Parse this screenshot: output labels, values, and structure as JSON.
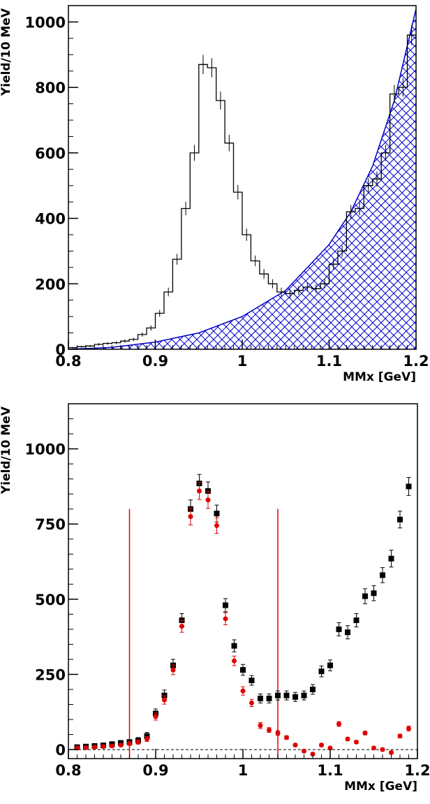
{
  "colors": {
    "axis": "#000000",
    "background_fill": "#0000cc",
    "cut_lines": "#e00000",
    "after_subtraction": "#e00000",
    "before_subtraction": "#000000"
  },
  "chart_data": [
    {
      "type": "line",
      "subtype": "histogram-with-fitted-background",
      "ylabel": "Yield/10 MeV",
      "xlabel": "MMx [GeV]",
      "xlim": [
        0.8,
        1.2
      ],
      "ylim": [
        0,
        1050
      ],
      "x_ticks": [
        "0.8",
        "0.9",
        "1",
        "1.1",
        "1.2"
      ],
      "y_ticks": [
        "0",
        "200",
        "400",
        "600",
        "800",
        "1000"
      ],
      "grid": false,
      "legend": "none",
      "bin_width": 0.01,
      "bin_edges_start": 0.8,
      "histogram_values": [
        5,
        8,
        10,
        15,
        18,
        20,
        25,
        30,
        45,
        65,
        110,
        175,
        275,
        430,
        600,
        870,
        860,
        760,
        630,
        480,
        350,
        270,
        230,
        200,
        175,
        170,
        180,
        190,
        185,
        200,
        260,
        300,
        420,
        430,
        500,
        520,
        600,
        780,
        800,
        960
      ],
      "background_fit": [
        [
          0.8,
          0
        ],
        [
          0.85,
          6
        ],
        [
          0.9,
          22
        ],
        [
          0.95,
          50
        ],
        [
          1.0,
          100
        ],
        [
          1.05,
          180
        ],
        [
          1.1,
          320
        ],
        [
          1.125,
          420
        ],
        [
          1.15,
          560
        ],
        [
          1.175,
          760
        ],
        [
          1.2,
          1040
        ]
      ]
    },
    {
      "type": "scatter",
      "ylabel": "Yield/10 MeV",
      "xlabel": "MMx [GeV]",
      "xlim": [
        0.8,
        1.2
      ],
      "ylim": [
        -30,
        1150
      ],
      "x_ticks": [
        "0.8",
        "0.9",
        "1",
        "1.1",
        "1.2"
      ],
      "y_ticks": [
        "0",
        "250",
        "500",
        "750",
        "1000"
      ],
      "grid": false,
      "legend": "none",
      "x": [
        0.81,
        0.82,
        0.83,
        0.84,
        0.85,
        0.86,
        0.87,
        0.88,
        0.89,
        0.9,
        0.91,
        0.92,
        0.93,
        0.94,
        0.95,
        0.96,
        0.97,
        0.98,
        0.99,
        1.0,
        1.01,
        1.02,
        1.03,
        1.04,
        1.05,
        1.06,
        1.07,
        1.08,
        1.09,
        1.1,
        1.11,
        1.12,
        1.13,
        1.14,
        1.15,
        1.16,
        1.17,
        1.18,
        1.19
      ],
      "series": [
        {
          "marker": "square",
          "values": [
            8,
            10,
            12,
            14,
            18,
            22,
            25,
            30,
            45,
            120,
            180,
            280,
            430,
            800,
            885,
            860,
            785,
            480,
            345,
            265,
            230,
            170,
            170,
            180,
            180,
            175,
            180,
            200,
            260,
            280,
            400,
            390,
            430,
            510,
            520,
            580,
            635,
            765,
            875
          ],
          "errors": [
            6,
            6,
            6,
            6,
            8,
            8,
            8,
            10,
            12,
            15,
            18,
            20,
            22,
            30,
            30,
            30,
            28,
            22,
            20,
            18,
            16,
            15,
            15,
            15,
            15,
            15,
            15,
            16,
            18,
            18,
            22,
            22,
            22,
            25,
            25,
            25,
            28,
            28,
            30
          ]
        },
        {
          "marker": "circle",
          "values": [
            5,
            6,
            8,
            10,
            12,
            15,
            20,
            25,
            35,
            110,
            165,
            265,
            410,
            775,
            860,
            830,
            745,
            435,
            295,
            195,
            155,
            80,
            65,
            55,
            40,
            15,
            -5,
            -15,
            15,
            5,
            85,
            35,
            25,
            55,
            5,
            0,
            -10,
            45,
            70
          ],
          "errors": [
            4,
            4,
            4,
            4,
            5,
            5,
            6,
            7,
            8,
            12,
            14,
            16,
            20,
            28,
            28,
            28,
            26,
            20,
            16,
            14,
            12,
            10,
            8,
            8,
            6,
            5,
            5,
            5,
            5,
            5,
            8,
            5,
            5,
            6,
            5,
            5,
            5,
            6,
            8
          ]
        }
      ],
      "vertical_lines": [
        0.87,
        1.04
      ],
      "zero_line": 0
    }
  ]
}
